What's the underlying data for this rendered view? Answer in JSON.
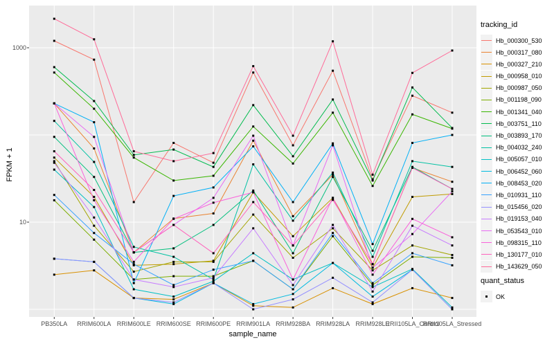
{
  "chart_data": {
    "type": "line",
    "title": "",
    "xlabel": "sample_name",
    "ylabel": "FPKM + 1",
    "y_scale": "log10",
    "y_axis": {
      "tick_values": [
        1000,
        10
      ],
      "tick_labels": [
        "1000",
        "10"
      ],
      "gridline_values": [
        1000,
        100,
        10,
        1
      ],
      "ylim": [
        0.85,
        3100
      ]
    },
    "panel": {
      "bg_color": "#ebebeb",
      "grid_color": "#ffffff",
      "point_color": "#000000"
    },
    "legend": {
      "title": "tracking_id",
      "position": "right"
    },
    "legend2": {
      "title": "quant_status",
      "items": [
        {
          "label": "OK",
          "marker": "black-square"
        }
      ]
    },
    "categories": [
      "PB350LA",
      "RRIM600LA",
      "RRIM600LE",
      "RRIM600SE",
      "RRIM600PE",
      "RRIM901LA",
      "RRIM928BA",
      "RRIM928LA",
      "RRIM928LE",
      "RRII105LA_Control",
      "RRII105LA_Stressed"
    ],
    "series": [
      {
        "name": "Hb_000300_530",
        "color": "#F8766D",
        "values": [
          1200,
          730,
          17,
          81,
          48,
          520,
          76,
          545,
          31,
          282,
          180
        ]
      },
      {
        "name": "Hb_000317_080",
        "color": "#EA8331",
        "values": [
          230,
          70,
          4.5,
          11,
          12.6,
          86,
          11.7,
          35,
          3.3,
          42,
          29
        ]
      },
      {
        "name": "Hb_000327_210",
        "color": "#D89000",
        "values": [
          2.5,
          2.8,
          1.35,
          1.3,
          2.0,
          1.1,
          1.05,
          1.75,
          1.15,
          1.75,
          1.35
        ]
      },
      {
        "name": "Hb_000958_010",
        "color": "#C09B00",
        "values": [
          55,
          19.5,
          3.2,
          3.3,
          3.6,
          22,
          6.9,
          19,
          3.0,
          19.5,
          21
        ]
      },
      {
        "name": "Hb_000987_050",
        "color": "#A3A500",
        "values": [
          50,
          9.1,
          2.7,
          3.5,
          3.5,
          12.2,
          3.9,
          8.5,
          2.8,
          5.4,
          4.2
        ]
      },
      {
        "name": "Hb_001198_090",
        "color": "#7CAE00",
        "values": [
          17.8,
          6.3,
          2.2,
          2.4,
          2.4,
          3.6,
          1.7,
          6.9,
          1.9,
          4.0,
          3.9
        ]
      },
      {
        "name": "Hb_001341_040",
        "color": "#39B600",
        "values": [
          520,
          200,
          55,
          30,
          34,
          125,
          47,
          180,
          26,
          172,
          118
        ]
      },
      {
        "name": "Hb_003751_110",
        "color": "#00BB4E",
        "values": [
          600,
          245,
          59,
          68,
          43,
          220,
          57,
          255,
          30,
          350,
          120
        ]
      },
      {
        "name": "Hb_003893_170",
        "color": "#00BF7D",
        "values": [
          95,
          33,
          4.5,
          5.0,
          9.3,
          23,
          4.4,
          33,
          4.7,
          43,
          24
        ]
      },
      {
        "name": "Hb_004032_240",
        "color": "#00C1A3",
        "values": [
          145,
          49,
          5.2,
          4.0,
          2.2,
          46,
          10.4,
          37,
          4.0,
          50,
          43
        ]
      },
      {
        "name": "Hb_005057_010",
        "color": "#00BFC4",
        "values": [
          40,
          14.9,
          1.7,
          1.4,
          2.1,
          4.4,
          2.2,
          3.4,
          1.8,
          2.9,
          1.05
        ]
      },
      {
        "name": "Hb_006452_060",
        "color": "#00BAE0",
        "values": [
          3.8,
          3.5,
          1.35,
          1.15,
          2.0,
          1.15,
          1.5,
          3.4,
          1.4,
          2.85,
          1.0
        ]
      },
      {
        "name": "Hb_008453_020",
        "color": "#00B0F6",
        "values": [
          230,
          140,
          2.0,
          20,
          25,
          74,
          17,
          80,
          5.6,
          81,
          100
        ]
      },
      {
        "name": "Hb_010931_110",
        "color": "#35A2FF",
        "values": [
          20.5,
          7.5,
          3.3,
          1.9,
          2.85,
          3.6,
          1.7,
          7.5,
          2.0,
          4.4,
          3.2
        ]
      },
      {
        "name": "Hb_015456_020",
        "color": "#9590FF",
        "values": [
          3.8,
          3.5,
          1.35,
          1.2,
          2.0,
          1.0,
          1.3,
          2.3,
          1.2,
          2.85,
          1.0
        ]
      },
      {
        "name": "Hb_019153_040",
        "color": "#C77CFF",
        "values": [
          48,
          11.3,
          2.2,
          1.8,
          2.3,
          8.5,
          1.9,
          9.3,
          1.6,
          9.1,
          5.4
        ]
      },
      {
        "name": "Hb_053543_010",
        "color": "#E76BF3",
        "values": [
          230,
          95,
          4.5,
          9.3,
          19,
          98,
          5.4,
          76,
          3.0,
          7.3,
          22.5
        ]
      },
      {
        "name": "Hb_098315_110",
        "color": "#FA62DB",
        "values": [
          230,
          17.8,
          3.5,
          10.9,
          16.7,
          22,
          2.2,
          19,
          2.5,
          10.9,
          6.7
        ]
      },
      {
        "name": "Hb_130177_010",
        "color": "#FF62BC",
        "values": [
          65,
          23.4,
          4.5,
          9.3,
          4.4,
          17,
          5.4,
          18,
          3.3,
          42,
          24
        ]
      },
      {
        "name": "Hb_143629_050",
        "color": "#FF6A98",
        "values": [
          2150,
          1250,
          65,
          50,
          62,
          615,
          98,
          1185,
          35,
          515,
          930
        ]
      }
    ]
  }
}
